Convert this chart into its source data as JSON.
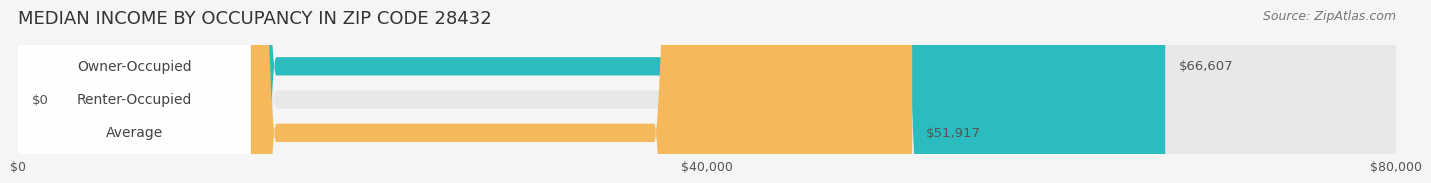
{
  "title": "MEDIAN INCOME BY OCCUPANCY IN ZIP CODE 28432",
  "source": "Source: ZipAtlas.com",
  "categories": [
    "Owner-Occupied",
    "Renter-Occupied",
    "Average"
  ],
  "values": [
    66607,
    0,
    51917
  ],
  "bar_colors": [
    "#2bbcbf",
    "#b09cc8",
    "#f5b85a"
  ],
  "bar_labels": [
    "$66,607",
    "$0",
    "$51,917"
  ],
  "xlim": [
    0,
    80000
  ],
  "xticks": [
    0,
    40000,
    80000
  ],
  "xtick_labels": [
    "$0",
    "$40,000",
    "$80,000"
  ],
  "background_color": "#f5f5f5",
  "bar_bg_color": "#e8e8e8",
  "label_bg_color": "#ffffff",
  "title_fontsize": 13,
  "source_fontsize": 9,
  "label_fontsize": 10,
  "tick_fontsize": 9,
  "bar_height": 0.55,
  "fig_width": 14.06,
  "fig_height": 1.96
}
